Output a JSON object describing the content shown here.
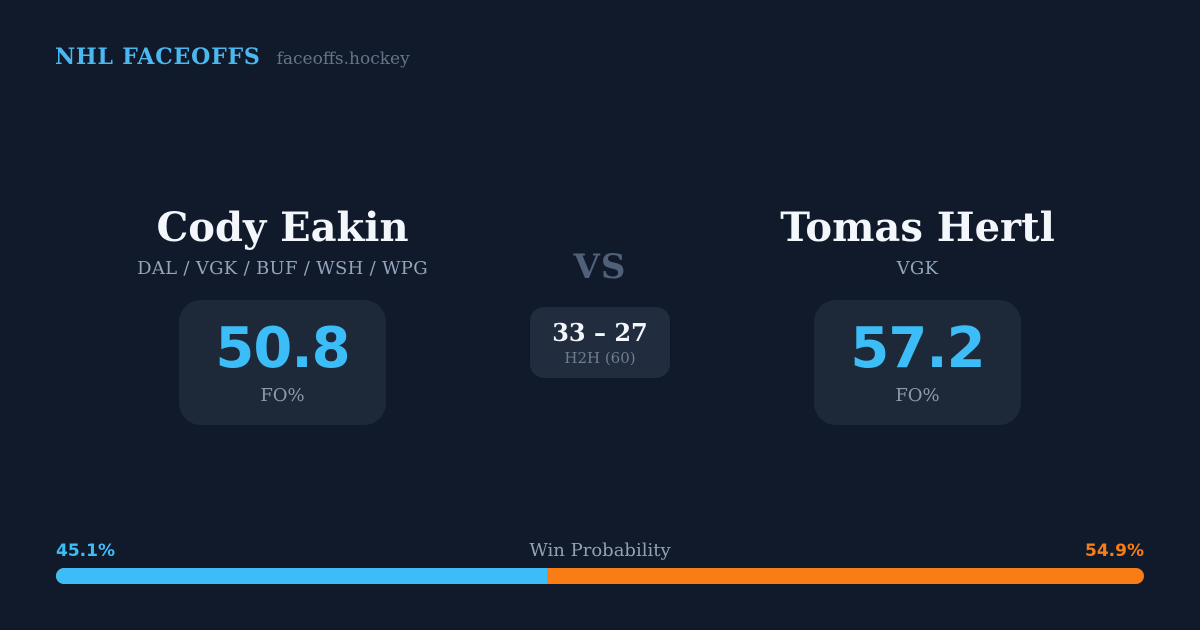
{
  "page": {
    "background": "#111a2b",
    "accent_blue": "#3cbdf8",
    "accent_orange": "#f97d16",
    "brand_blue": "#4cb8f0"
  },
  "header": {
    "brand": "NHL FACEOFFS",
    "domain": "faceoffs.hockey"
  },
  "player_left": {
    "name": "Cody Eakin",
    "teams": "DAL / VGK / BUF / WSH / WPG",
    "stat_value": "50.8",
    "stat_label": "FO%"
  },
  "matchup": {
    "vs_label": "VS",
    "h2h_score": "33 – 27",
    "h2h_label": "H2H (60)"
  },
  "player_right": {
    "name": "Tomas Hertl",
    "teams": "VGK",
    "stat_value": "57.2",
    "stat_label": "FO%"
  },
  "win_probability": {
    "title": "Win Probability",
    "left_pct_label": "45.1%",
    "right_pct_label": "54.9%",
    "left_value": 45.1,
    "right_value": 54.9
  }
}
